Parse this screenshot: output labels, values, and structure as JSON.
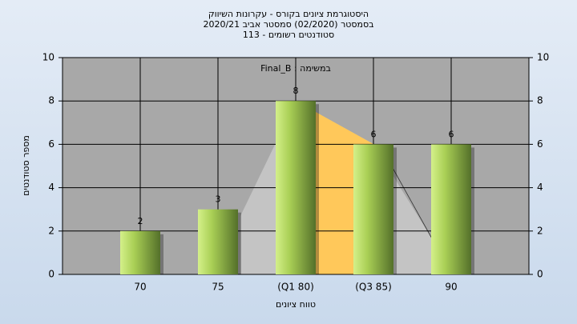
{
  "chart_data": {
    "type": "bar",
    "title": [
      "היסטוגרמת ציונים בקורס - עקרונות השיווק",
      "בסמסטר (02/2020) סמסטר אביב 2020/21",
      "סטודנטים רשומים - 113"
    ],
    "annotation": "במשימה : Final_B",
    "x_label": "טווח ציונים",
    "y_label": "מספר סטודנטים",
    "categories": [
      "70",
      "75",
      "(Q1 80)",
      "(Q3 85)",
      "90"
    ],
    "values": [
      2,
      3,
      8,
      6,
      6
    ],
    "color": "#8fb33e",
    "ylim": [
      0,
      10
    ],
    "yticks": [
      0,
      2,
      4,
      6,
      8,
      10
    ],
    "y2lim": [
      0,
      10
    ],
    "y2ticks": [
      0,
      2,
      4,
      6,
      8,
      10
    ],
    "grid": true
  }
}
